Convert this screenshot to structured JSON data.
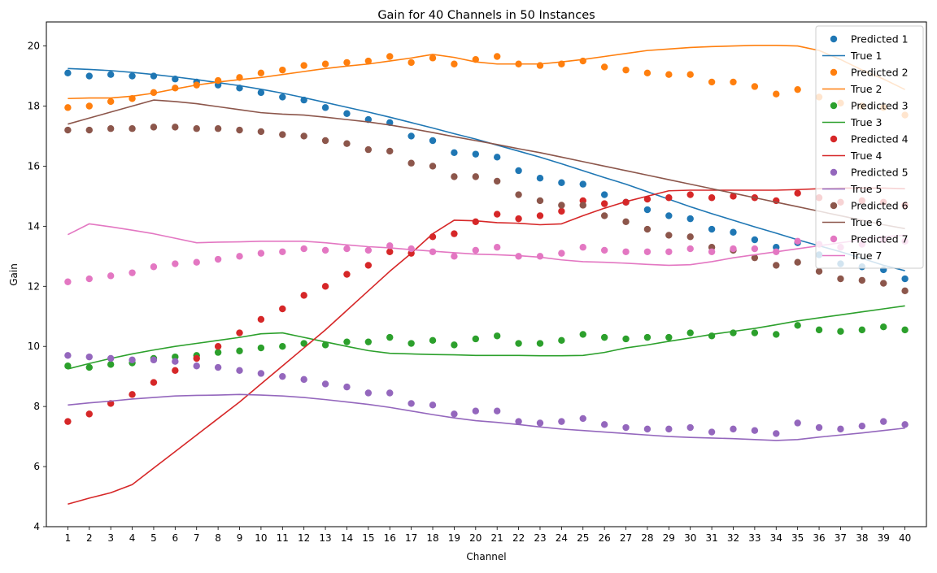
{
  "chart_data": {
    "type": "line",
    "title": "Gain for 40 Channels in 50 Instances",
    "xlabel": "Channel",
    "ylabel": "Gain",
    "x": [
      1,
      2,
      3,
      4,
      5,
      6,
      7,
      8,
      9,
      10,
      11,
      12,
      13,
      14,
      15,
      16,
      17,
      18,
      19,
      20,
      21,
      22,
      23,
      24,
      25,
      26,
      27,
      28,
      29,
      30,
      31,
      32,
      33,
      34,
      35,
      36,
      37,
      38,
      39,
      40
    ],
    "xlim": [
      0,
      41
    ],
    "ylim": [
      4,
      20.8
    ],
    "yticks": [
      4,
      6,
      8,
      10,
      12,
      14,
      16,
      18,
      20
    ],
    "grid": false,
    "legend_position": "upper right",
    "series": [
      {
        "name": "Predicted 1",
        "kind": "scatter",
        "color": "#1f77b4",
        "values": [
          19.1,
          19.0,
          19.05,
          19.0,
          19.0,
          18.9,
          18.8,
          18.7,
          18.6,
          18.45,
          18.3,
          18.2,
          17.95,
          17.75,
          17.55,
          17.45,
          17.0,
          16.85,
          16.45,
          16.4,
          16.3,
          15.85,
          15.6,
          15.45,
          15.4,
          15.05,
          14.8,
          14.55,
          14.35,
          14.25,
          13.9,
          13.8,
          13.55,
          13.3,
          13.45,
          13.05,
          12.75,
          12.65,
          12.55,
          12.25
        ]
      },
      {
        "name": "True 1",
        "kind": "line",
        "color": "#1f77b4",
        "values": [
          19.25,
          19.22,
          19.18,
          19.12,
          19.05,
          18.97,
          18.88,
          18.78,
          18.68,
          18.56,
          18.43,
          18.28,
          18.12,
          17.96,
          17.8,
          17.63,
          17.45,
          17.27,
          17.08,
          16.9,
          16.7,
          16.5,
          16.3,
          16.08,
          15.85,
          15.62,
          15.4,
          15.15,
          14.9,
          14.65,
          14.42,
          14.2,
          13.98,
          13.77,
          13.55,
          13.35,
          13.15,
          12.93,
          12.7,
          12.52
        ]
      },
      {
        "name": "Predicted 2",
        "kind": "scatter",
        "color": "#ff7f0e",
        "values": [
          17.95,
          18.0,
          18.15,
          18.25,
          18.45,
          18.6,
          18.7,
          18.85,
          18.95,
          19.1,
          19.2,
          19.35,
          19.4,
          19.45,
          19.5,
          19.65,
          19.45,
          19.6,
          19.4,
          19.55,
          19.65,
          19.4,
          19.35,
          19.4,
          19.5,
          19.3,
          19.2,
          19.1,
          19.05,
          19.05,
          18.8,
          18.8,
          18.65,
          18.4,
          18.55,
          18.3,
          18.1,
          18.0,
          17.95,
          17.7
        ]
      },
      {
        "name": "True 2",
        "kind": "line",
        "color": "#ff7f0e",
        "values": [
          18.25,
          18.27,
          18.27,
          18.33,
          18.43,
          18.57,
          18.7,
          18.8,
          18.88,
          18.95,
          19.05,
          19.15,
          19.25,
          19.33,
          19.4,
          19.5,
          19.6,
          19.72,
          19.62,
          19.47,
          19.4,
          19.4,
          19.4,
          19.47,
          19.55,
          19.65,
          19.75,
          19.85,
          19.9,
          19.95,
          19.98,
          20.0,
          20.02,
          20.02,
          20.0,
          19.85,
          19.55,
          19.2,
          18.9,
          18.55
        ]
      },
      {
        "name": "Predicted 3",
        "kind": "scatter",
        "color": "#2ca02c",
        "values": [
          9.35,
          9.3,
          9.4,
          9.45,
          9.6,
          9.65,
          9.7,
          9.8,
          9.85,
          9.95,
          10.0,
          10.1,
          10.05,
          10.15,
          10.15,
          10.3,
          10.1,
          10.2,
          10.05,
          10.25,
          10.35,
          10.1,
          10.1,
          10.2,
          10.4,
          10.3,
          10.25,
          10.3,
          10.3,
          10.45,
          10.35,
          10.45,
          10.45,
          10.4,
          10.7,
          10.55,
          10.5,
          10.55,
          10.65,
          10.55
        ]
      },
      {
        "name": "True 3",
        "kind": "line",
        "color": "#2ca02c",
        "values": [
          9.25,
          9.43,
          9.6,
          9.75,
          9.88,
          10.0,
          10.1,
          10.2,
          10.3,
          10.42,
          10.45,
          10.3,
          10.15,
          10.0,
          9.86,
          9.77,
          9.75,
          9.73,
          9.72,
          9.7,
          9.7,
          9.7,
          9.69,
          9.69,
          9.7,
          9.8,
          9.95,
          10.05,
          10.17,
          10.28,
          10.4,
          10.5,
          10.6,
          10.72,
          10.85,
          10.95,
          11.05,
          11.15,
          11.25,
          11.35
        ]
      },
      {
        "name": "Predicted 4",
        "kind": "scatter",
        "color": "#d62728",
        "values": [
          7.5,
          7.75,
          8.1,
          8.4,
          8.8,
          9.2,
          9.6,
          10.0,
          10.45,
          10.9,
          11.25,
          11.7,
          12.0,
          12.4,
          12.7,
          13.15,
          13.1,
          13.65,
          13.75,
          14.15,
          14.4,
          14.25,
          14.35,
          14.5,
          14.85,
          14.75,
          14.8,
          14.9,
          14.95,
          15.05,
          14.95,
          15.0,
          14.95,
          14.85,
          15.1,
          14.95,
          14.8,
          14.85,
          14.8,
          14.7
        ]
      },
      {
        "name": "True 4",
        "kind": "line",
        "color": "#d62728",
        "values": [
          4.75,
          4.95,
          5.13,
          5.4,
          5.95,
          6.5,
          7.05,
          7.6,
          8.15,
          8.75,
          9.35,
          9.95,
          10.55,
          11.2,
          11.85,
          12.5,
          13.1,
          13.75,
          14.2,
          14.18,
          14.12,
          14.1,
          14.05,
          14.08,
          14.35,
          14.6,
          14.82,
          15.0,
          15.18,
          15.2,
          15.2,
          15.2,
          15.2,
          15.2,
          15.22,
          15.25,
          15.27,
          15.27,
          15.27,
          15.25
        ]
      },
      {
        "name": "Predicted 5",
        "kind": "scatter",
        "color": "#9467bd",
        "values": [
          9.7,
          9.65,
          9.6,
          9.55,
          9.55,
          9.5,
          9.35,
          9.3,
          9.2,
          9.1,
          9.0,
          8.9,
          8.75,
          8.65,
          8.45,
          8.45,
          8.1,
          8.05,
          7.75,
          7.85,
          7.85,
          7.5,
          7.45,
          7.5,
          7.6,
          7.4,
          7.3,
          7.25,
          7.25,
          7.3,
          7.15,
          7.25,
          7.2,
          7.1,
          7.45,
          7.3,
          7.25,
          7.35,
          7.5,
          7.4
        ]
      },
      {
        "name": "True 5",
        "kind": "line",
        "color": "#9467bd",
        "values": [
          8.05,
          8.12,
          8.18,
          8.25,
          8.3,
          8.35,
          8.37,
          8.38,
          8.4,
          8.38,
          8.35,
          8.3,
          8.23,
          8.15,
          8.07,
          7.97,
          7.85,
          7.73,
          7.62,
          7.53,
          7.47,
          7.4,
          7.32,
          7.25,
          7.2,
          7.15,
          7.1,
          7.05,
          7.0,
          6.97,
          6.95,
          6.93,
          6.9,
          6.87,
          6.9,
          6.98,
          7.05,
          7.12,
          7.2,
          7.28
        ]
      },
      {
        "name": "Predicted 6",
        "kind": "scatter",
        "color": "#8c564b",
        "values": [
          17.2,
          17.2,
          17.25,
          17.25,
          17.3,
          17.3,
          17.25,
          17.25,
          17.2,
          17.15,
          17.05,
          17.0,
          16.85,
          16.75,
          16.55,
          16.5,
          16.1,
          16.0,
          15.65,
          15.65,
          15.5,
          15.05,
          14.85,
          14.7,
          14.7,
          14.35,
          14.15,
          13.9,
          13.7,
          13.65,
          13.3,
          13.2,
          12.95,
          12.7,
          12.8,
          12.5,
          12.25,
          12.2,
          12.1,
          11.85
        ]
      },
      {
        "name": "True 6",
        "kind": "line",
        "color": "#8c564b",
        "values": [
          17.4,
          17.6,
          17.8,
          18.0,
          18.2,
          18.15,
          18.08,
          17.98,
          17.88,
          17.78,
          17.73,
          17.7,
          17.63,
          17.55,
          17.47,
          17.37,
          17.25,
          17.12,
          16.98,
          16.85,
          16.72,
          16.58,
          16.45,
          16.3,
          16.15,
          16.0,
          15.85,
          15.7,
          15.55,
          15.4,
          15.25,
          15.1,
          14.95,
          14.8,
          14.65,
          14.5,
          14.35,
          14.2,
          14.05,
          13.92
        ]
      },
      {
        "name": "Predicted 7",
        "kind": "scatter",
        "color": "#e377c2",
        "values": [
          12.15,
          12.25,
          12.35,
          12.45,
          12.65,
          12.75,
          12.8,
          12.9,
          13.0,
          13.1,
          13.15,
          13.25,
          13.2,
          13.25,
          13.2,
          13.35,
          13.25,
          13.15,
          13.0,
          13.2,
          13.3,
          13.0,
          13.0,
          13.1,
          13.3,
          13.2,
          13.15,
          13.15,
          13.15,
          13.25,
          13.15,
          13.25,
          13.25,
          13.15,
          13.5,
          13.4,
          13.3,
          13.4,
          13.55,
          13.5
        ]
      },
      {
        "name": "True 7",
        "kind": "line",
        "color": "#e377c2",
        "values": [
          13.72,
          14.08,
          13.98,
          13.87,
          13.75,
          13.6,
          13.45,
          13.47,
          13.48,
          13.5,
          13.5,
          13.5,
          13.45,
          13.38,
          13.32,
          13.28,
          13.22,
          13.17,
          13.12,
          13.07,
          13.05,
          13.02,
          12.97,
          12.88,
          12.82,
          12.8,
          12.77,
          12.73,
          12.7,
          12.72,
          12.82,
          12.95,
          13.05,
          13.15,
          13.25,
          13.35,
          13.45,
          13.55,
          13.65,
          13.7
        ]
      }
    ]
  }
}
